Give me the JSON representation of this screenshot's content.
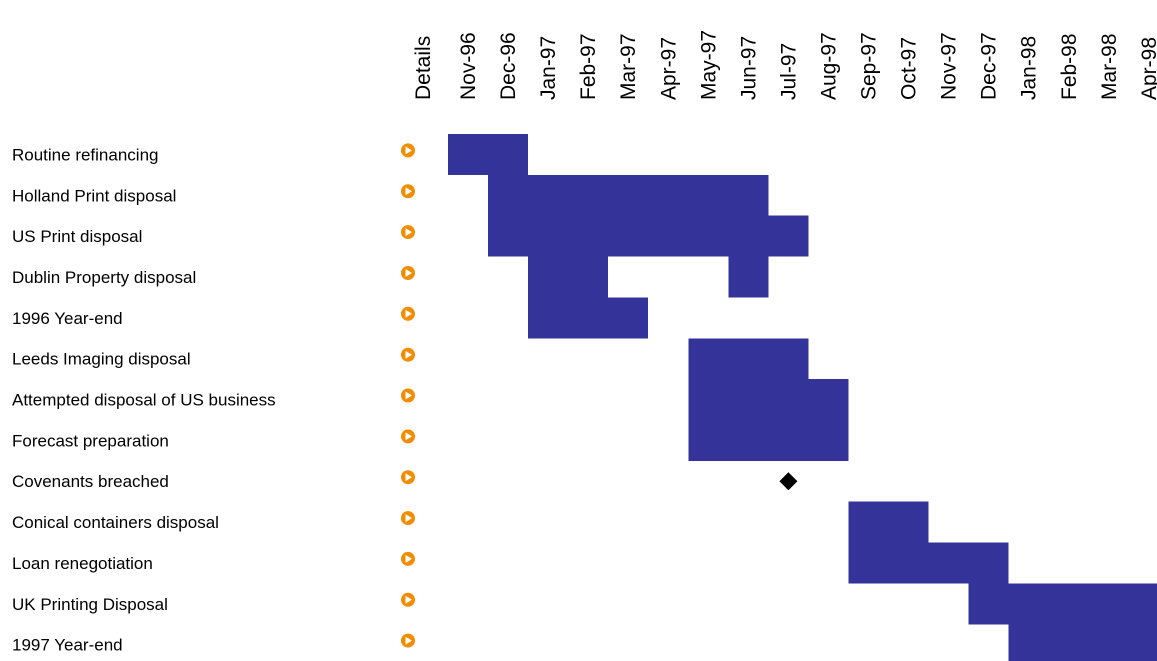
{
  "chart_data": {
    "type": "gantt",
    "details_header": "Details",
    "months": [
      "Nov-96",
      "Dec-96",
      "Jan-97",
      "Feb-97",
      "Mar-97",
      "Apr-97",
      "May-97",
      "Jun-97",
      "Jul-97",
      "Aug-97",
      "Sep-97",
      "Oct-97",
      "Nov-97",
      "Dec-97",
      "Jan-98",
      "Feb-98",
      "Mar-98",
      "Apr-98"
    ],
    "tasks": [
      {
        "label": "Routine refinancing",
        "start": "Nov-96",
        "end": "Dec-96"
      },
      {
        "label": "Holland Print disposal",
        "start": "Dec-96",
        "end": "Jun-97"
      },
      {
        "label": "US Print disposal",
        "start": "Dec-96",
        "end": "Jul-97"
      },
      {
        "label": "Dublin Property disposal",
        "start": "Jan-97",
        "end": "Feb-97",
        "extra_start": "Jun-97",
        "extra_end": "Jun-97"
      },
      {
        "label": "1996 Year-end",
        "start": "Jan-97",
        "end": "Mar-97"
      },
      {
        "label": "Leeds Imaging disposal",
        "start": "May-97",
        "end": "Jul-97"
      },
      {
        "label": "Attempted disposal of US business",
        "start": "May-97",
        "end": "Aug-97"
      },
      {
        "label": "Forecast preparation",
        "start": "May-97",
        "end": "Aug-97"
      },
      {
        "label": "Covenants breached",
        "milestone": "Jul-97"
      },
      {
        "label": "Conical containers disposal",
        "start": "Sep-97",
        "end": "Oct-97"
      },
      {
        "label": "Loan renegotiation",
        "start": "Sep-97",
        "end": "Dec-97"
      },
      {
        "label": "UK Printing Disposal",
        "start": "Dec-97",
        "end": "Apr-98"
      },
      {
        "label": "1997 Year-end",
        "start": "Jan-98",
        "end": "Apr-98"
      }
    ],
    "colors": {
      "bar": "#333399",
      "milestone": "#000000",
      "details_icon": "#f28c00",
      "details_icon_arrow": "#ffffff"
    },
    "icons": {
      "details": "play-circle-icon",
      "milestone": "diamond-icon"
    }
  }
}
